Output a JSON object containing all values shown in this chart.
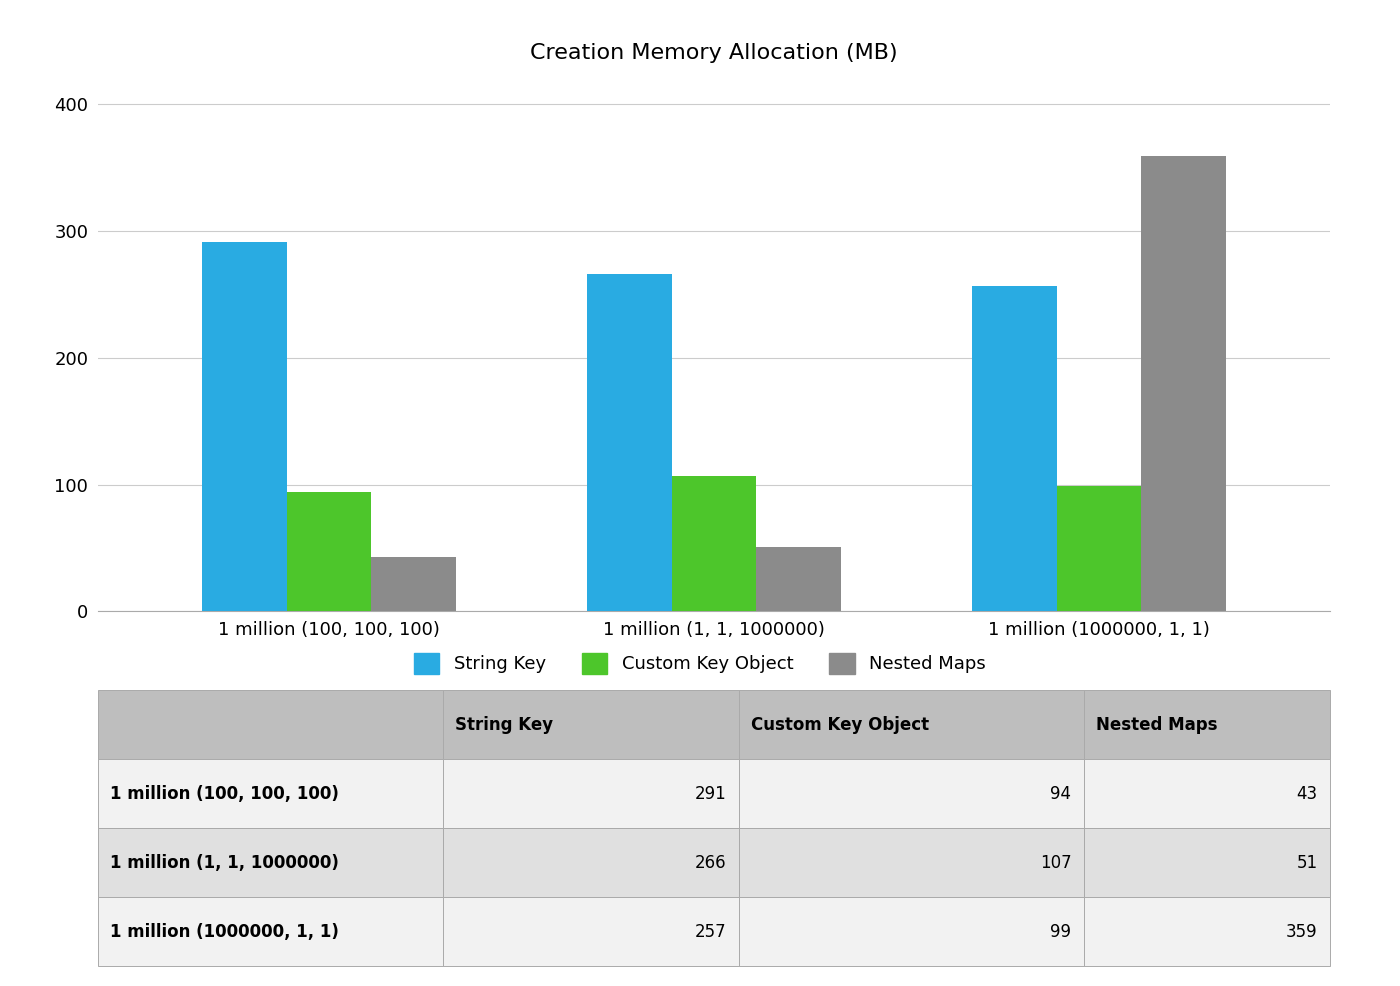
{
  "title": "Creation Memory Allocation (MB)",
  "categories": [
    "1 million (100, 100, 100)",
    "1 million (1, 1, 1000000)",
    "1 million (1000000, 1, 1)"
  ],
  "series": [
    {
      "name": "String Key",
      "color": "#29ABE2",
      "values": [
        291,
        266,
        257
      ]
    },
    {
      "name": "Custom Key Object",
      "color": "#4DC62B",
      "values": [
        94,
        107,
        99
      ]
    },
    {
      "name": "Nested Maps",
      "color": "#8B8B8B",
      "values": [
        43,
        51,
        359
      ]
    }
  ],
  "ylim": [
    0,
    420
  ],
  "yticks": [
    0,
    100,
    200,
    300,
    400
  ],
  "background_color": "#FFFFFF",
  "grid_color": "#CCCCCC",
  "title_fontsize": 16,
  "tick_fontsize": 13,
  "legend_fontsize": 13,
  "table_header_bg": "#BEBEBE",
  "table_row_bg_odd": "#F2F2F2",
  "table_row_bg_even": "#E0E0E0",
  "table_col_labels": [
    "String Key",
    "Custom Key Object",
    "Nested Maps"
  ],
  "table_row_labels": [
    "1 million (100, 100, 100)",
    "1 million (1, 1, 1000000)",
    "1 million (1000000, 1, 1)"
  ],
  "table_values": [
    [
      291,
      94,
      43
    ],
    [
      266,
      107,
      51
    ],
    [
      257,
      99,
      359
    ]
  ],
  "bar_width": 0.22
}
